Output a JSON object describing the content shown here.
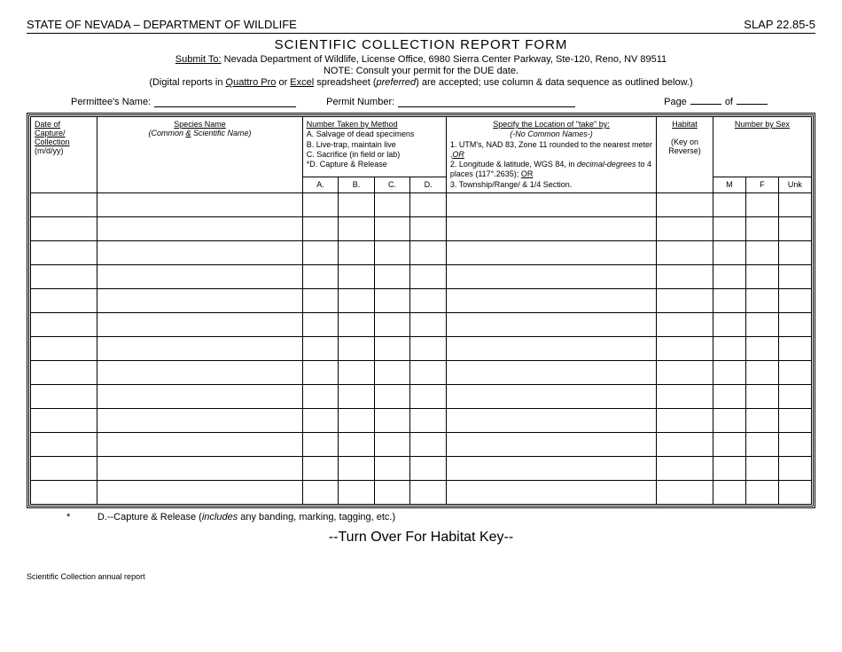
{
  "header": {
    "left": "STATE OF NEVADA – DEPARTMENT OF WILDLIFE",
    "right": "SLAP 22.85-5"
  },
  "title": "SCIENTIFIC COLLECTION REPORT FORM",
  "submit": {
    "label": "Submit To:",
    "text": "Nevada Department of Wildlife, License Office, 6980 Sierra Center Parkway, Ste-120, Reno, NV  89511"
  },
  "note": "NOTE:  Consult your permit for the DUE date.",
  "digital": {
    "prefix": "(Digital reports in ",
    "q": "Quattro Pro",
    "or": " or ",
    "e": "Excel",
    "mid": " spreadsheet (",
    "pref": "preferred",
    "suffix": ") are accepted; use column & data sequence as outlined below.)"
  },
  "info": {
    "permittee_label": "Permittee's Name:",
    "permit_label": "Permit Number:",
    "page_label": "Page",
    "of_label": "of"
  },
  "columns": {
    "date": {
      "l1": "Date of",
      "l2": "Capture/",
      "l3": "Collection",
      "l4": "(m/d/yy)"
    },
    "species": {
      "l1": "Species Name",
      "l2_a": "(Common ",
      "l2_b": "&",
      "l2_c": " Scientific Name)"
    },
    "method": {
      "title": "Number Taken by Method",
      "a": "A.  Salvage of dead specimens",
      "b": "B.  Live-trap, maintain live",
      "c": "C.  Sacrifice (in field or lab)",
      "d": "*D.  Capture & Release",
      "sub": {
        "a": "A.",
        "b": "B.",
        "c": "C.",
        "d": "D."
      }
    },
    "location": {
      "title": "Specify the Location of \"take\" by:",
      "sub1": "(-No Common Names-)",
      "l1": "1. UTM's, NAD 83, Zone 11 rounded to the nearest meter ,",
      "or1": "OR",
      "l2a": "2. Longitude & latitude, WGS 84, in ",
      "l2b": "decimal-degrees",
      "l2c": " to 4 places (117°.2635); ",
      "or2": "OR",
      "l3": "3. Township/Range/ & 1/4 Section."
    },
    "habitat": {
      "l1": "Habitat",
      "l2": "(Key on Reverse)"
    },
    "sex": {
      "title": "Number by Sex",
      "m": "M",
      "f": "F",
      "u": "Unk"
    }
  },
  "data_rows": 13,
  "footnote": {
    "star": "*",
    "text_a": "D.--Capture & Release (",
    "text_b": "includes",
    "text_c": " any banding, marking, tagging, etc.)"
  },
  "turnover": "--Turn Over For Habitat Key--",
  "bottom": "Scientific Collection annual report"
}
